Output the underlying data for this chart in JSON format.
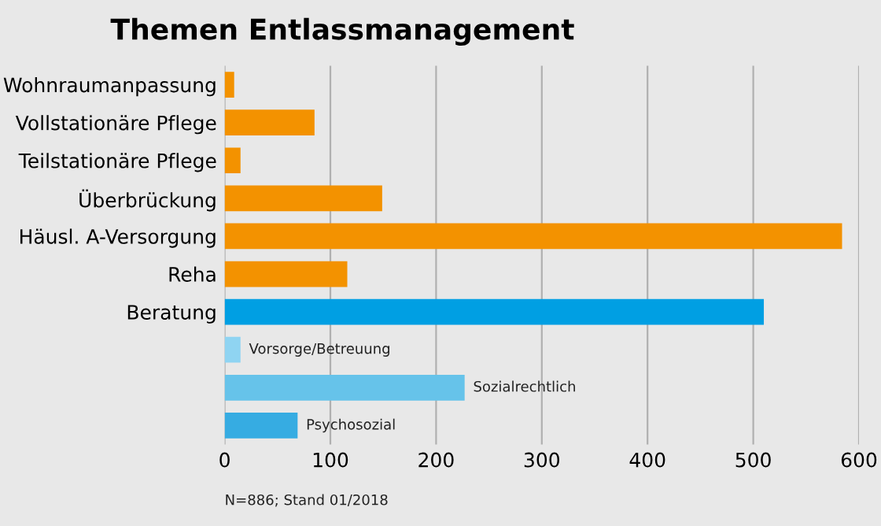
{
  "chart_data": {
    "type": "bar",
    "orientation": "horizontal",
    "title": "Themen Entlassmanagement",
    "categories": [
      "Wohnraumanpassung",
      "Vollstationäre Pflege",
      "Teilstationäre Pflege",
      "Überbrückung",
      "Häusl. A-Versorgung",
      "Reha",
      "Beratung",
      null,
      null,
      null
    ],
    "series": [
      {
        "colors": [
          "#f39200",
          "#f39200",
          "#f39200",
          "#f39200",
          "#f39200",
          "#f39200",
          "#009fe3",
          null,
          null,
          null
        ],
        "values": [
          9,
          85,
          15,
          149,
          584,
          116,
          510,
          null,
          null,
          null
        ]
      },
      {
        "name": "Vorsorge/Betreuung",
        "color": "#8fd4f2",
        "values": [
          null,
          null,
          null,
          null,
          null,
          null,
          null,
          15,
          null,
          null
        ]
      },
      {
        "name": "Sozialrechtlich",
        "color": "#66c3ea",
        "values": [
          null,
          null,
          null,
          null,
          null,
          null,
          null,
          null,
          227,
          null
        ]
      },
      {
        "name": "Psychosozial",
        "color": "#36ace2",
        "values": [
          null,
          null,
          null,
          null,
          null,
          null,
          null,
          null,
          null,
          69
        ]
      }
    ],
    "xlim": [
      0,
      600
    ],
    "xticks": [
      0,
      100,
      200,
      300,
      400,
      500,
      600
    ],
    "grid": "x",
    "legend": false,
    "annotations": [
      "N=886; Stand 01/2018"
    ]
  }
}
